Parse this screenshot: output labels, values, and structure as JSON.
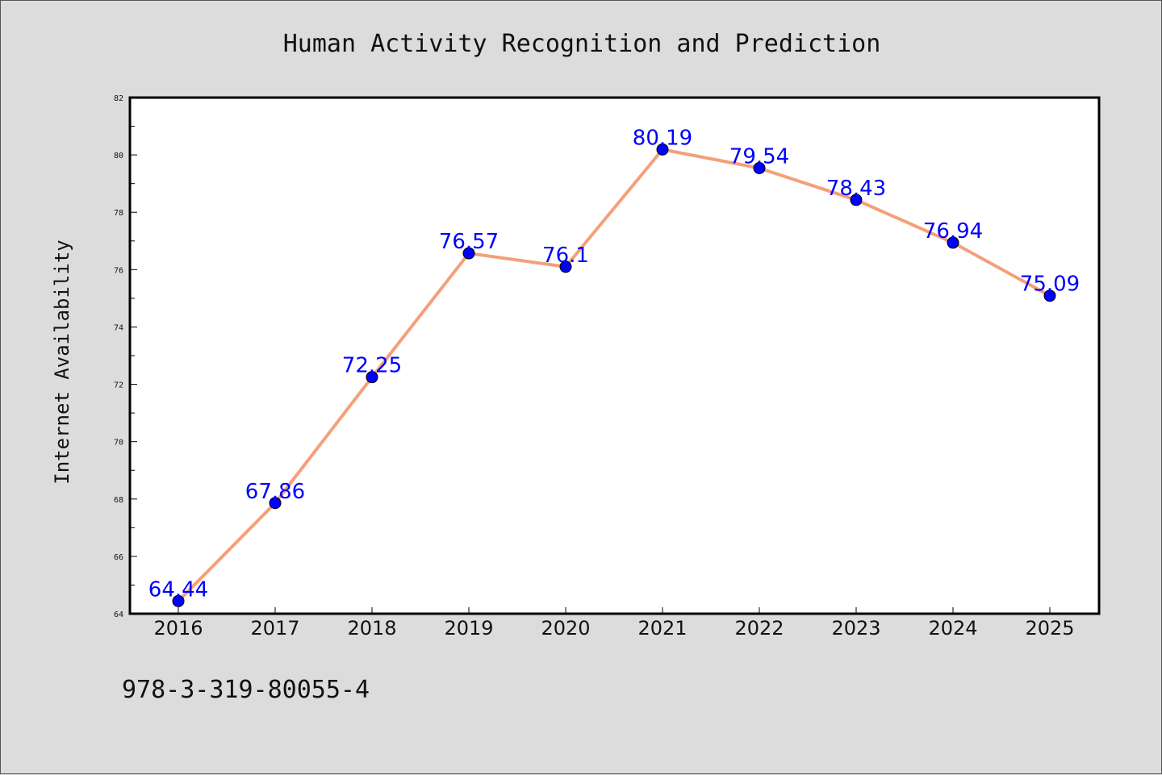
{
  "chart_data": {
    "type": "line",
    "title": "Human Activity Recognition and Prediction",
    "xlabel": "",
    "ylabel": "Internet Availability",
    "categories": [
      "2016",
      "2017",
      "2018",
      "2019",
      "2020",
      "2021",
      "2022",
      "2023",
      "2024",
      "2025"
    ],
    "series": [
      {
        "values": [
          64.44,
          67.86,
          72.25,
          76.57,
          76.1,
          80.19,
          79.54,
          78.43,
          76.94,
          75.09
        ],
        "line_color": "#f4a07a",
        "marker_color": "#0000ff"
      }
    ],
    "data_labels": [
      "64.44",
      "67.86",
      "72.25",
      "76.57",
      "76.1",
      "80.19",
      "79.54",
      "78.43",
      "76.94",
      "75.09"
    ],
    "ylim": [
      64,
      82
    ],
    "yticks": [
      "64",
      "66",
      "68",
      "70",
      "72",
      "74",
      "76",
      "78",
      "80",
      "82"
    ],
    "grid": false,
    "legend": "none",
    "label_color": "#0000ff"
  },
  "footer": {
    "isbn": "978-3-319-80055-4"
  }
}
